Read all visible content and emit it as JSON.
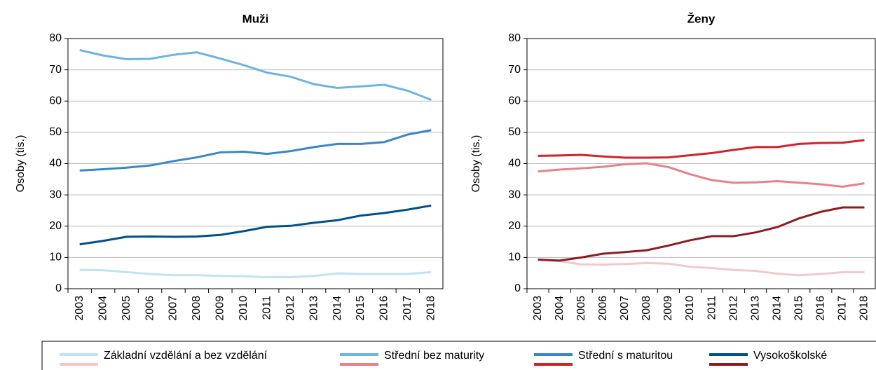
{
  "chart_data": [
    {
      "type": "line",
      "title": "Muži",
      "y_label": "Osoby (tis.)",
      "categories": [
        "2003",
        "2004",
        "2005",
        "2006",
        "2007",
        "2008",
        "2009",
        "2010",
        "2011",
        "2012",
        "2013",
        "2014",
        "2015",
        "2016",
        "2017",
        "2018"
      ],
      "ylim": [
        0,
        80
      ],
      "yticks": [
        0,
        10,
        20,
        30,
        40,
        50,
        60,
        70,
        80
      ],
      "grid": true,
      "series": [
        {
          "name": "Základní vzdělání a bez vzdělání",
          "color": "#bfe3f5",
          "values": [
            6.0,
            5.9,
            5.3,
            4.7,
            4.3,
            4.3,
            4.1,
            4.0,
            3.7,
            3.7,
            4.1,
            4.9,
            4.7,
            4.7,
            4.7,
            5.3
          ]
        },
        {
          "name": "Střední bez maturity",
          "color": "#6cb4e3",
          "values": [
            76.3,
            74.6,
            73.4,
            73.5,
            74.8,
            75.6,
            73.6,
            71.5,
            69.1,
            67.8,
            65.4,
            64.2,
            64.7,
            65.2,
            63.3,
            60.4
          ]
        },
        {
          "name": "Střední s maturitou",
          "color": "#3a86c8",
          "values": [
            37.8,
            38.2,
            38.7,
            39.4,
            40.8,
            42.0,
            43.6,
            43.8,
            43.1,
            44.0,
            45.3,
            46.3,
            46.3,
            46.9,
            49.3,
            50.7
          ]
        },
        {
          "name": "Vysokoškolské",
          "color": "#00508c",
          "values": [
            14.2,
            15.3,
            16.6,
            16.7,
            16.6,
            16.7,
            17.2,
            18.4,
            19.8,
            20.1,
            21.1,
            21.9,
            23.4,
            24.2,
            25.3,
            26.6
          ]
        }
      ]
    },
    {
      "type": "line",
      "title": "Ženy",
      "y_label": "Osoby (tis.)",
      "categories": [
        "2003",
        "2004",
        "2005",
        "2006",
        "2007",
        "2008",
        "2009",
        "2010",
        "2011",
        "2012",
        "2013",
        "2014",
        "2015",
        "2016",
        "2017",
        "2018"
      ],
      "ylim": [
        0,
        80
      ],
      "yticks": [
        0,
        10,
        20,
        30,
        40,
        50,
        60,
        70,
        80
      ],
      "grid": true,
      "series": [
        {
          "name": "Základní vzdělání a bez vzdělání",
          "color": "#f2c8cc",
          "values": [
            9.3,
            8.8,
            7.8,
            7.7,
            7.9,
            8.2,
            8.0,
            7.0,
            6.6,
            6.0,
            5.7,
            4.8,
            4.3,
            4.7,
            5.3,
            5.3
          ]
        },
        {
          "name": "Střední bez maturity",
          "color": "#e8808a",
          "values": [
            37.5,
            38.1,
            38.5,
            39.0,
            39.8,
            40.1,
            38.9,
            36.6,
            34.7,
            33.9,
            34.0,
            34.4,
            33.9,
            33.4,
            32.6,
            33.7
          ]
        },
        {
          "name": "Střední s maturitou",
          "color": "#d2232a",
          "values": [
            42.5,
            42.6,
            42.8,
            42.3,
            41.9,
            41.9,
            42.0,
            42.7,
            43.4,
            44.4,
            45.3,
            45.3,
            46.3,
            46.6,
            46.7,
            47.5
          ]
        },
        {
          "name": "Vysokoškolské",
          "color": "#8c1c22",
          "values": [
            9.3,
            9.0,
            10.0,
            11.2,
            11.7,
            12.3,
            13.8,
            15.5,
            16.8,
            16.8,
            18.0,
            19.7,
            22.5,
            24.6,
            26.0,
            26.0
          ]
        }
      ]
    }
  ]
}
